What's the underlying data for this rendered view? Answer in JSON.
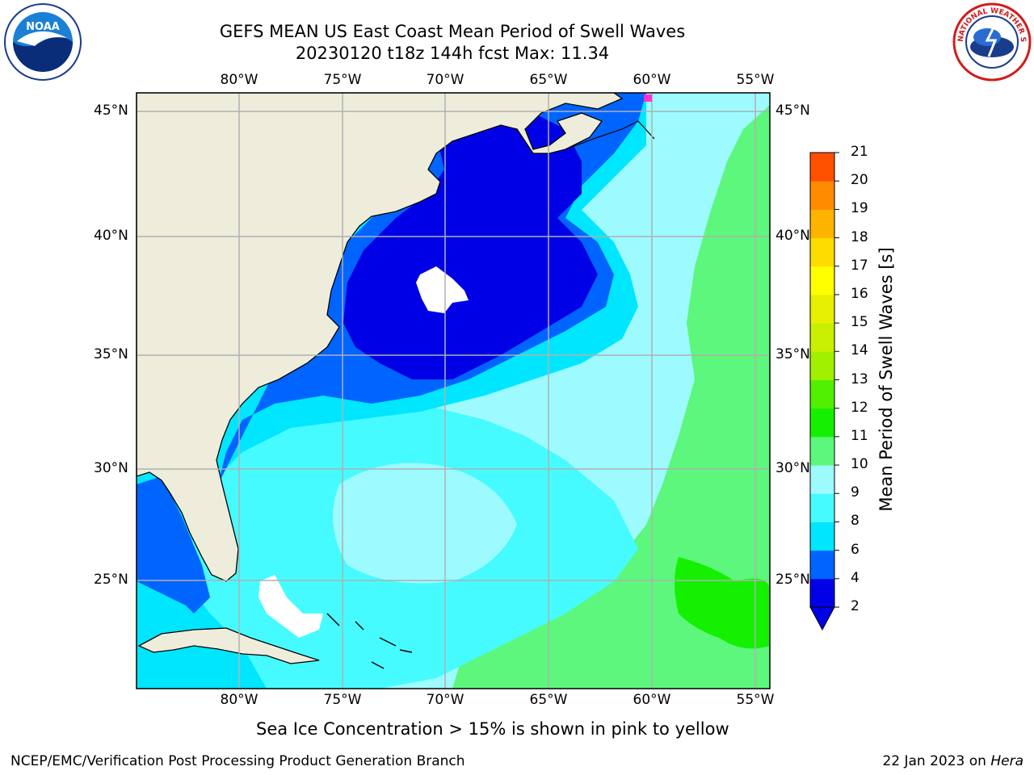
{
  "title": {
    "line1": "GEFS MEAN US East Coast Mean Period of Swell Waves",
    "line2": "20230120 t18z 144h fcst   Max: 11.34"
  },
  "logos": {
    "left": "NOAA",
    "right": "NATIONAL WEATHER SERVICE"
  },
  "map": {
    "lon_labels": [
      "80°W",
      "75°W",
      "70°W",
      "65°W",
      "60°W",
      "55°W"
    ],
    "lat_labels": [
      "45°N",
      "40°N",
      "35°N",
      "30°N",
      "25°N"
    ],
    "colors": {
      "land": "#eeeddc",
      "p2_4": "#0000e6",
      "p4_6": "#0064ff",
      "p6_8": "#00e6ff",
      "p8_9": "#46fbff",
      "p9_10": "#9dfbff",
      "p10_11": "#5cf77c",
      "p11_12": "#14f000",
      "grid": "#b0b0b0",
      "coast": "#000000"
    }
  },
  "colorbar": {
    "label": "Mean Period of Swell Waves [s]",
    "ticks": [
      "2",
      "4",
      "6",
      "8",
      "9",
      "10",
      "11",
      "12",
      "13",
      "14",
      "15",
      "16",
      "17",
      "18",
      "19",
      "20",
      "21"
    ],
    "colors": [
      "#0000e6",
      "#0064ff",
      "#00e6ff",
      "#46fbff",
      "#9dfbff",
      "#5cf77c",
      "#14f000",
      "#50f000",
      "#a0f000",
      "#c8f000",
      "#e6f000",
      "#ffff00",
      "#ffdc00",
      "#ffb400",
      "#ff8c00",
      "#ff5000",
      "#ff2800",
      "#ff0000"
    ],
    "under_color": "#0000e6"
  },
  "footnote": "Sea Ice Concentration > 15% is shown in pink to yellow",
  "credit_left": "NCEP/EMC/Verification Post Processing Product Generation Branch",
  "credit_right_date": "22 Jan 2023 on ",
  "credit_right_host": "Hera"
}
